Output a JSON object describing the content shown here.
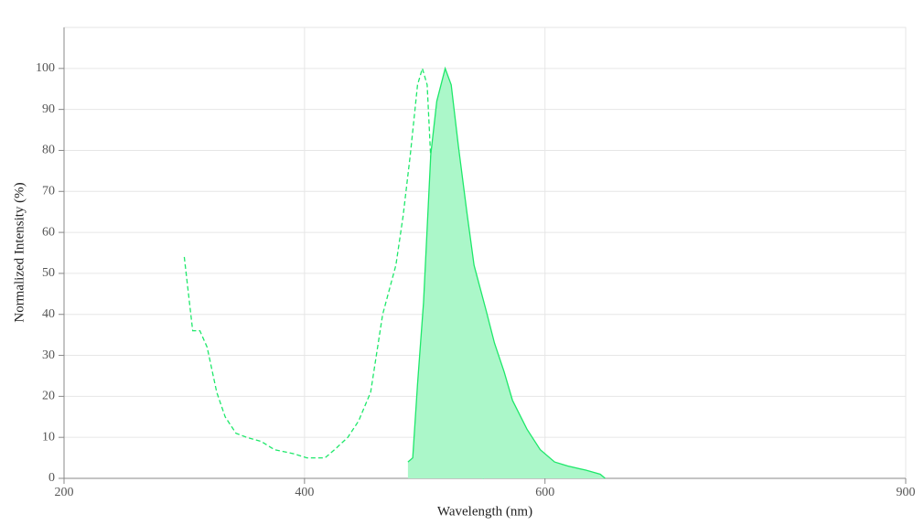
{
  "chart_data": {
    "type": "spectra",
    "xlabel": "Wavelength (nm)",
    "ylabel": "Normalized Intensity (%)",
    "xlim": [
      200,
      900
    ],
    "xticks": [
      200,
      400,
      600,
      900
    ],
    "ylim": [
      0,
      110
    ],
    "yticks": [
      0,
      10,
      20,
      30,
      40,
      50,
      60,
      70,
      80,
      90,
      100
    ],
    "grid": true,
    "series": [
      {
        "color": "#1ee86a",
        "dashed": true,
        "filled": false,
        "x": [
          300,
          307,
          313,
          319,
          327,
          334,
          343,
          352,
          364,
          375,
          391,
          402,
          417,
          425,
          436,
          445,
          455,
          465,
          476,
          482,
          488,
          494,
          498,
          502,
          506,
          512,
          518,
          525,
          531,
          539,
          549
        ],
        "values": [
          54,
          36,
          36,
          32,
          21,
          15,
          11,
          10,
          9,
          7,
          6,
          5,
          5,
          7,
          10,
          14,
          21,
          40,
          52,
          64,
          79,
          96,
          100,
          96,
          72,
          45,
          21,
          10,
          3,
          1,
          0
        ]
      },
      {
        "color": "#1ee86a",
        "fill": "#abf7c9",
        "dashed": false,
        "filled": true,
        "x": [
          486,
          490,
          494,
          499,
          505,
          510,
          517,
          522,
          528,
          535,
          541,
          551,
          558,
          566,
          573,
          585,
          596,
          608,
          619,
          634,
          646,
          650
        ],
        "values": [
          4,
          5,
          23,
          43,
          79,
          92,
          100,
          96,
          81,
          65,
          52,
          41,
          33,
          26,
          19,
          12,
          7,
          4,
          3,
          2,
          1,
          0
        ]
      }
    ]
  }
}
